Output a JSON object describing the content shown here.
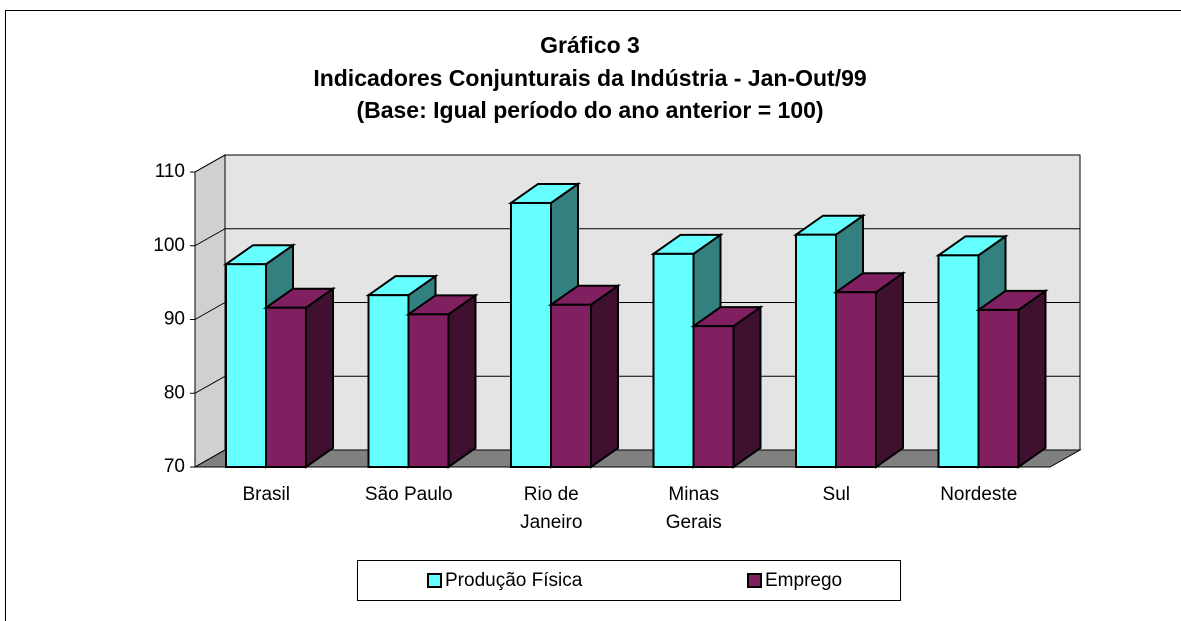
{
  "chart_data": {
    "type": "bar3d",
    "title": "Gráfico 3",
    "subtitle": [
      "Indicadores Conjunturais da Indústria - Jan-Out/99",
      "(Base: Igual período do ano anterior = 100)"
    ],
    "categories": [
      "Brasil",
      "São Paulo",
      "Rio de Janeiro",
      "Minas Gerais",
      "Sul",
      "Nordeste"
    ],
    "series": [
      {
        "name": "Produção Física",
        "color": "#66ffff",
        "side": "#338080",
        "values": [
          97.5,
          93.3,
          105.8,
          98.9,
          101.5,
          98.7
        ]
      },
      {
        "name": "Emprego",
        "color": "#802060",
        "side": "#401030",
        "values": [
          91.6,
          90.7,
          92.0,
          89.1,
          93.7,
          91.3
        ]
      }
    ],
    "ylim": [
      70,
      110
    ],
    "yticks": [
      70,
      80,
      90,
      100,
      110
    ],
    "grid": true,
    "legend": "bottom"
  }
}
